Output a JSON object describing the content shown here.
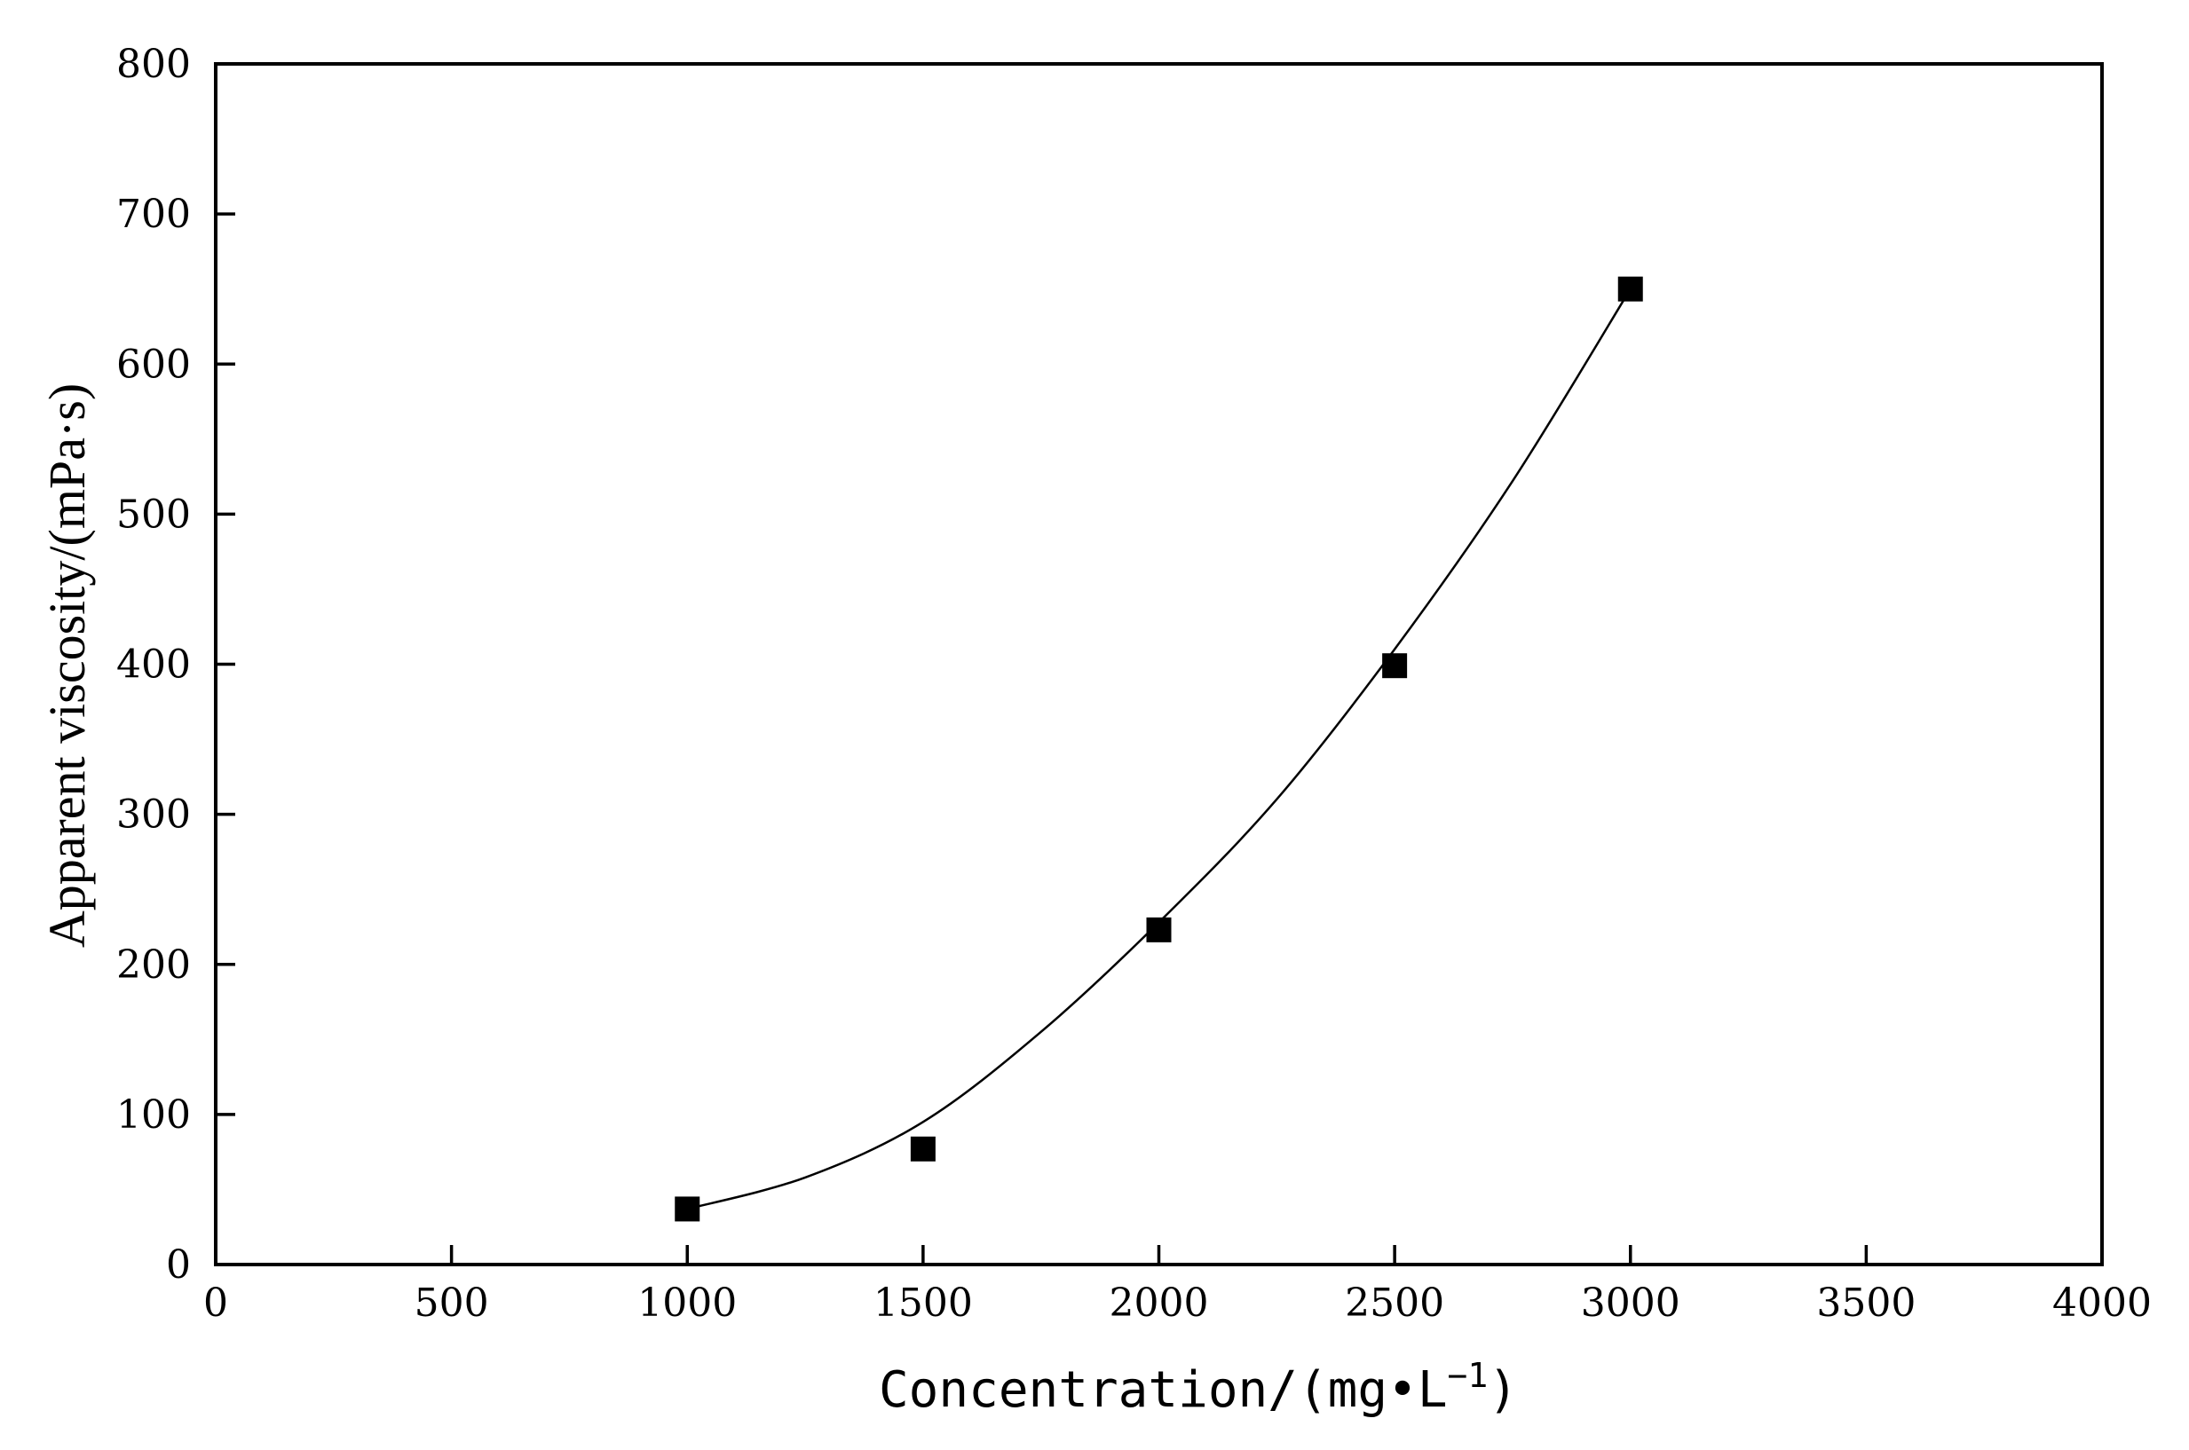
{
  "chart_data": {
    "type": "scatter",
    "title": "",
    "xlabel": "Concentration/(mg•L",
    "xlabel_superscript": "−1",
    "xlabel_close": ")",
    "ylabel": "Apparent viscosity/(mPa·s)",
    "xlim": [
      0,
      4000
    ],
    "ylim": [
      0,
      800
    ],
    "x_ticks": [
      0,
      500,
      1000,
      1500,
      2000,
      2500,
      3000,
      3500,
      4000
    ],
    "y_ticks": [
      0,
      100,
      200,
      300,
      400,
      500,
      600,
      700,
      800
    ],
    "grid": false,
    "legend": "none",
    "series": [
      {
        "marker": "square",
        "color": "#000000",
        "x": [
          1000,
          1500,
          2000,
          2500,
          3000
        ],
        "y": [
          37,
          77,
          223,
          399,
          650
        ]
      }
    ],
    "fit_curve": {
      "style": "smooth line",
      "color": "#000000",
      "x": [
        1000,
        1250,
        1500,
        1750,
        2000,
        2250,
        2500,
        2750,
        3000
      ],
      "y": [
        37,
        58,
        95,
        155,
        228,
        310,
        410,
        522,
        650
      ]
    }
  }
}
